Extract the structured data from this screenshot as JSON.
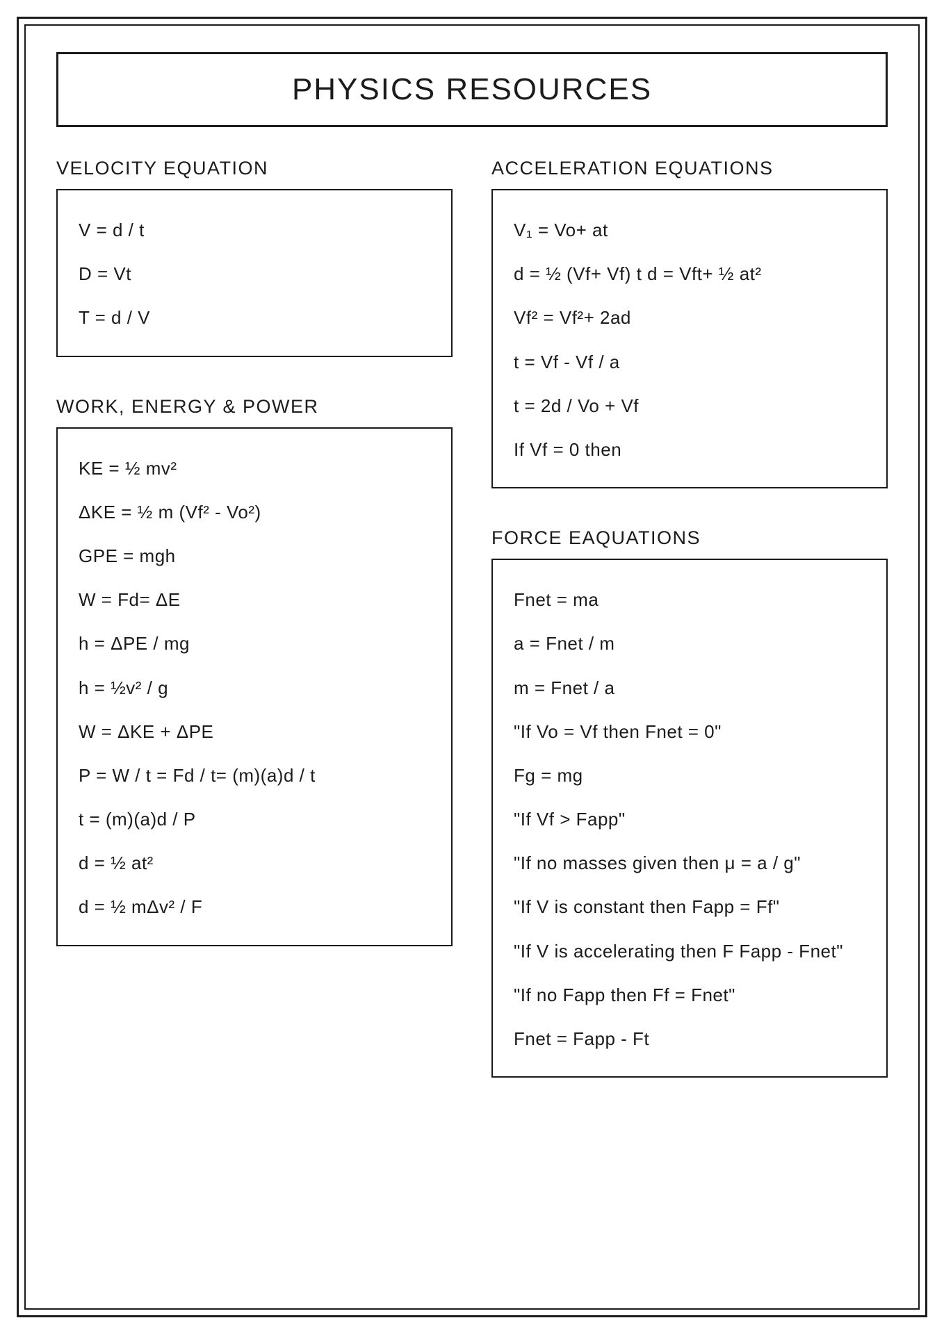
{
  "title": "PHYSICS RESOURCES",
  "sections": {
    "velocity": {
      "heading": "VELOCITY EQUATION",
      "equations": [
        "V = d / t",
        "D = Vt",
        "T = d / V"
      ]
    },
    "work": {
      "heading": "WORK, ENERGY & POWER",
      "equations": [
        "KE = ½ mv²",
        "ΔKE = ½ m (Vf² - Vo²)",
        "GPE = mgh",
        "W = Fd= ΔE",
        "h = ΔPE / mg",
        "h = ½v² / g",
        "W = ΔKE + ΔPE",
        "P = W / t = Fd / t= (m)(a)d / t",
        "t = (m)(a)d / P",
        "d = ½ at²",
        "d = ½ mΔv² / F"
      ]
    },
    "acceleration": {
      "heading": "ACCELERATION EQUATIONS",
      "equations": [
        "V₁ = Vo+ at",
        "d = ½ (Vf+ Vf) t d = Vft+ ½ at²",
        "Vf² = Vf²+ 2ad",
        "t = Vf - Vf / a",
        "t = 2d / Vo + Vf",
        "If Vf = 0 then"
      ]
    },
    "force": {
      "heading": "FORCE EAQUATIONS",
      "equations": [
        "Fnet = ma",
        "a = Fnet / m",
        "m = Fnet / a",
        "\"If Vo = Vf then Fnet = 0\"",
        "Fg = mg",
        "\"If Vf > Fapp\"",
        "\"If no masses given then μ = a / g\"",
        "\"If V is constant then Fapp = Ff\"",
        "\"If V is accelerating then F Fapp - Fnet\"",
        "\"If no Fapp then Ff = Fnet\"",
        "Fnet = Fapp - Ft"
      ]
    }
  },
  "style": {
    "page_background": "#ffffff",
    "text_color": "#1b1b1b",
    "border_color": "#1b1b1b",
    "title_fontsize": 44,
    "section_heading_fontsize": 27,
    "equation_fontsize": 26,
    "outer_border_width": 3,
    "inner_border_width": 2,
    "box_border_width": 2
  }
}
